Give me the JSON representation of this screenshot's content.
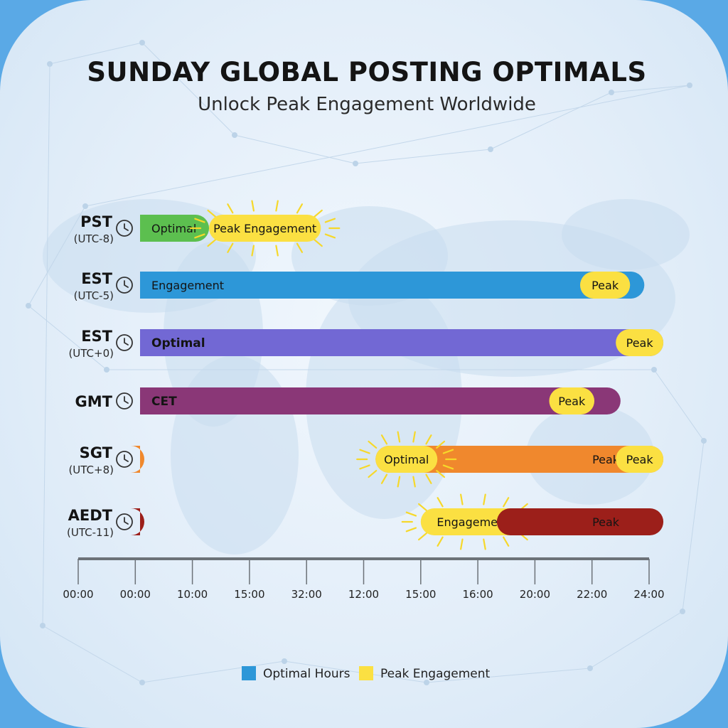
{
  "chart_data": {
    "type": "bar",
    "title": "SUNDAY GLOBAL POSTING OPTIMALS",
    "subtitle": "Unlock Peak Engagement Worldwide",
    "x_ticks": [
      "00:00",
      "00:00",
      "10:00",
      "15:00",
      "32:00",
      "12:00",
      "15:00",
      "16:00",
      "20:00",
      "22:00",
      "24:00"
    ],
    "x_start_hour": 0,
    "x_end_hour": 24,
    "rows": [
      {
        "name": "PST",
        "offset": "(UTC-8)",
        "segments": [
          {
            "start": 0,
            "end": 5.5,
            "kind": "optimal",
            "color": "#5cbf4f",
            "label": "Optimal"
          },
          {
            "start": 5.5,
            "end": 10.2,
            "kind": "peak",
            "color": "#fbe042",
            "label": "Peak Engagement",
            "glow": true
          }
        ]
      },
      {
        "name": "EST",
        "offset": "(UTC-5)",
        "segments": [
          {
            "start": 0,
            "end": 23.8,
            "kind": "optimal",
            "color": "#2d97d8",
            "label": "Engagement"
          },
          {
            "start": 21.1,
            "end": 23.2,
            "kind": "peak",
            "color": "#fbe042",
            "label": "Peak"
          }
        ]
      },
      {
        "name": "EST",
        "offset": "(UTC+0)",
        "segments": [
          {
            "start": 0,
            "end": 24.6,
            "kind": "optimal",
            "color": "#7268d4",
            "label": "Optimal",
            "bold": true
          },
          {
            "start": 22.6,
            "end": 24.6,
            "kind": "peak",
            "color": "#fbe042",
            "label": "Peak"
          }
        ]
      },
      {
        "name": "GMT",
        "offset": "",
        "segments": [
          {
            "start": 0,
            "end": 22.8,
            "kind": "optimal",
            "color": "#8a3777",
            "label": "CET",
            "bold": true
          },
          {
            "start": 19.8,
            "end": 21.7,
            "kind": "peak",
            "color": "#fbe042",
            "label": "Peak"
          }
        ]
      },
      {
        "name": "SGT",
        "offset": "(UTC+8)",
        "segments": [
          {
            "start": 0,
            "end": 0.7,
            "kind": "optimal",
            "color": "#f0882d",
            "label": ""
          },
          {
            "start": 12.5,
            "end": 24.6,
            "kind": "optimal",
            "color": "#f0882d",
            "label": "Peak"
          },
          {
            "start": 12.5,
            "end": 15.1,
            "kind": "peak",
            "color": "#fbe042",
            "label": "Optimal",
            "glow": true
          },
          {
            "start": 22.6,
            "end": 24.6,
            "kind": "peak",
            "color": "#fbe042",
            "label": "Peak"
          }
        ]
      },
      {
        "name": "AEDT",
        "offset": "(UTC-11)",
        "segments": [
          {
            "start": 0,
            "end": 0.7,
            "kind": "optimal",
            "color": "#9c1f1a",
            "label": ""
          },
          {
            "start": 14.4,
            "end": 18.8,
            "kind": "peak",
            "color": "#fbe042",
            "label": "Engagement",
            "glow": true
          },
          {
            "start": 17.6,
            "end": 24.6,
            "kind": "optimal",
            "color": "#9c1f1a",
            "label": "Peak"
          }
        ]
      }
    ],
    "legend": [
      {
        "label": "Optimal Hours",
        "color": "#2d97d8"
      },
      {
        "label": "Peak Engagement",
        "color": "#fbe042"
      }
    ],
    "legend_position": "bottom-center",
    "grid": false
  }
}
